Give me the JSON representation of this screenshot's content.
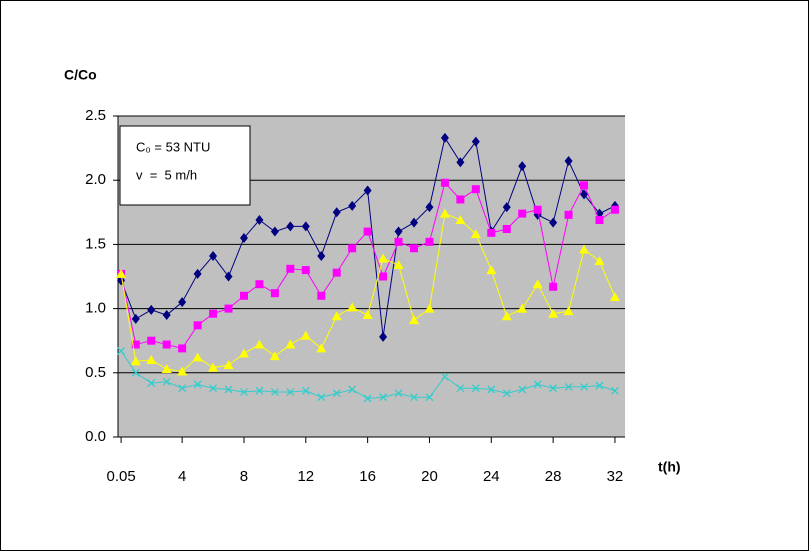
{
  "chart_data": {
    "type": "line",
    "y_label": "C/Co",
    "x_label": "t(h)",
    "annotations": [
      "C₀ = 53 NTU",
      "v  =  5 m/h"
    ],
    "x": [
      0.05,
      1,
      2,
      3,
      4,
      5,
      6,
      7,
      8,
      9,
      10,
      11,
      12,
      13,
      14,
      15,
      16,
      17,
      18,
      19,
      20,
      21,
      22,
      23,
      24,
      25,
      26,
      27,
      28,
      29,
      30,
      31,
      32
    ],
    "series": [
      {
        "color": "#000080",
        "marker": "diamond",
        "values": [
          1.22,
          0.92,
          0.99,
          0.95,
          1.05,
          1.27,
          1.41,
          1.25,
          1.55,
          1.69,
          1.6,
          1.64,
          1.64,
          1.41,
          1.75,
          1.8,
          1.92,
          0.78,
          1.6,
          1.67,
          1.79,
          2.33,
          2.14,
          2.3,
          1.6,
          1.79,
          2.11,
          1.73,
          1.67,
          2.15,
          1.89,
          1.74,
          1.8
        ]
      },
      {
        "color": "#ff00ff",
        "marker": "square",
        "values": [
          1.27,
          0.72,
          0.75,
          0.72,
          0.69,
          0.87,
          0.96,
          1.0,
          1.1,
          1.19,
          1.12,
          1.31,
          1.3,
          1.1,
          1.28,
          1.47,
          1.6,
          1.25,
          1.52,
          1.47,
          1.52,
          1.98,
          1.85,
          1.93,
          1.59,
          1.62,
          1.74,
          1.77,
          1.17,
          1.73,
          1.96,
          1.69,
          1.77
        ]
      },
      {
        "color": "#ffff00",
        "marker": "triangle",
        "values": [
          1.27,
          0.59,
          0.6,
          0.53,
          0.51,
          0.62,
          0.54,
          0.56,
          0.65,
          0.72,
          0.63,
          0.72,
          0.79,
          0.69,
          0.94,
          1.01,
          0.95,
          1.39,
          1.34,
          0.91,
          1.0,
          1.74,
          1.69,
          1.58,
          1.3,
          0.94,
          1.0,
          1.19,
          0.96,
          0.98,
          1.46,
          1.37,
          1.09
        ]
      },
      {
        "color": "#33cccc",
        "marker": "x",
        "values": [
          0.67,
          0.5,
          0.42,
          0.43,
          0.38,
          0.41,
          0.38,
          0.37,
          0.35,
          0.36,
          0.35,
          0.35,
          0.36,
          0.31,
          0.34,
          0.37,
          0.3,
          0.31,
          0.34,
          0.31,
          0.31,
          0.47,
          0.38,
          0.38,
          0.37,
          0.34,
          0.37,
          0.41,
          0.38,
          0.39,
          0.39,
          0.4,
          0.36
        ]
      }
    ],
    "xlim": [
      -0.15,
      32.65
    ],
    "xticks": [
      {
        "value": 0.05,
        "label": "0.05"
      },
      4,
      8,
      12,
      16,
      20,
      24,
      28,
      32
    ],
    "ylim": [
      0,
      2.5
    ],
    "yticks": [
      {
        "value": 0,
        "label": "0.0"
      },
      {
        "value": 0.5,
        "label": "0.5"
      },
      {
        "value": 1,
        "label": "1.0"
      },
      {
        "value": 1.5,
        "label": "1.5"
      },
      {
        "value": 2,
        "label": "2.0"
      },
      {
        "value": 2.5,
        "label": "2.5"
      }
    ],
    "grid": true,
    "plot_background": "#c0c0c0"
  }
}
